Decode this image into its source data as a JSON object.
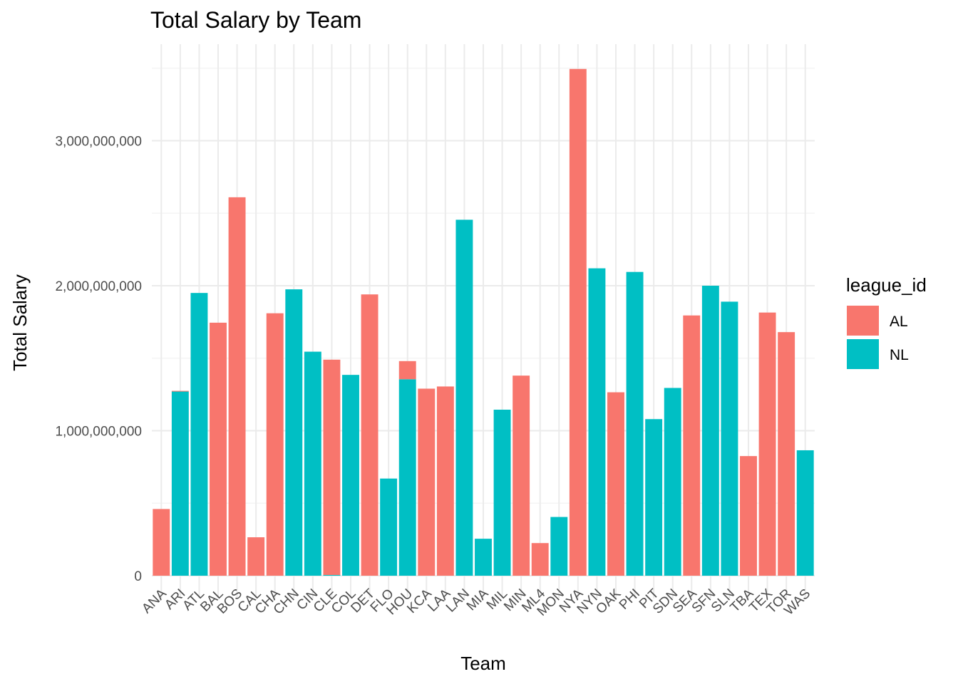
{
  "chart_data": {
    "type": "bar",
    "title": "Total Salary by Team",
    "xlabel": "Team",
    "ylabel": "Total Salary",
    "ylim": [
      0,
      3500000000
    ],
    "y_ticks": [
      0,
      1000000000,
      2000000000,
      3000000000
    ],
    "y_tick_labels": [
      "0",
      "1,000,000,000",
      "2,000,000,000",
      "3,000,000,000"
    ],
    "grid": true,
    "legend": {
      "title": "league_id",
      "placement": "right",
      "entries": [
        {
          "name": "AL",
          "color": "#F8766D"
        },
        {
          "name": "NL",
          "color": "#00BFC4"
        }
      ]
    },
    "stacked": true,
    "categories": [
      "ANA",
      "ARI",
      "ATL",
      "BAL",
      "BOS",
      "CAL",
      "CHA",
      "CHN",
      "CIN",
      "CLE",
      "COL",
      "DET",
      "FLO",
      "HOU",
      "KCA",
      "LAA",
      "LAN",
      "MIA",
      "MIL",
      "MIN",
      "ML4",
      "MON",
      "NYA",
      "NYN",
      "OAK",
      "PHI",
      "PIT",
      "SDN",
      "SEA",
      "SFN",
      "SLN",
      "TBA",
      "TEX",
      "TOR",
      "WAS"
    ],
    "series": [
      {
        "name": "AL",
        "color": "#F8766D",
        "values": [
          460000000,
          5000000,
          0,
          1745000000,
          2610000000,
          265000000,
          1810000000,
          0,
          0,
          1485000000,
          0,
          1940000000,
          0,
          125000000,
          1290000000,
          1305000000,
          0,
          0,
          0,
          1380000000,
          225000000,
          0,
          3495000000,
          0,
          1265000000,
          0,
          0,
          0,
          1795000000,
          0,
          0,
          825000000,
          1815000000,
          1680000000,
          0
        ]
      },
      {
        "name": "NL",
        "color": "#00BFC4",
        "values": [
          0,
          1270000000,
          1950000000,
          0,
          0,
          0,
          0,
          1975000000,
          1545000000,
          5000000,
          1385000000,
          0,
          670000000,
          1355000000,
          0,
          0,
          2455000000,
          255000000,
          1145000000,
          0,
          0,
          405000000,
          0,
          2120000000,
          0,
          2095000000,
          1080000000,
          1295000000,
          0,
          2000000000,
          1890000000,
          0,
          0,
          0,
          865000000
        ]
      }
    ]
  }
}
